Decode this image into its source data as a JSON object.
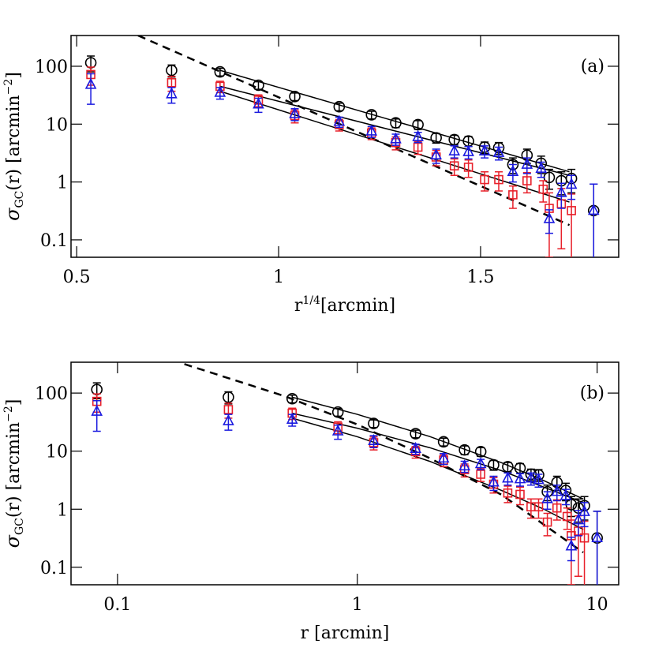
{
  "chart_data": [
    {
      "type": "scatter",
      "panel_label": "(a)",
      "xlabel": [
        "r",
        "1/4",
        "[arcmin]"
      ],
      "ylabel": [
        "σ",
        "GC",
        "(r)  [arcmin",
        "−2",
        "]"
      ],
      "xlog": false,
      "ylog": true,
      "xlim": [
        0.486,
        1.842
      ],
      "ylim": [
        340,
        0.05
      ],
      "xticks": [
        0.5,
        1,
        1.5
      ],
      "yticks": [
        0.1,
        1,
        10,
        100
      ],
      "series": [
        {
          "marker": "circle",
          "color": "#000000",
          "x": [
            0.535,
            0.735,
            0.855,
            0.95,
            1.04,
            1.15,
            1.23,
            1.29,
            1.345,
            1.39,
            1.435,
            1.47,
            1.51,
            1.545,
            1.58,
            1.615,
            1.65,
            1.67,
            1.7,
            1.725,
            1.78
          ],
          "values": [
            115,
            85,
            80,
            47,
            30,
            20,
            14.5,
            10.5,
            9.8,
            5.8,
            5.4,
            5.1,
            4.0,
            3.9,
            2.0,
            2.9,
            2.1,
            1.2,
            1.05,
            1.15,
            0.32
          ],
          "errors": [
            35,
            20,
            12,
            7,
            4.5,
            3,
            2.2,
            1.8,
            1.7,
            1.1,
            1.0,
            1.0,
            0.9,
            0.9,
            0.6,
            0.8,
            0.7,
            0.45,
            0.45,
            0.5,
            0.6
          ]
        },
        {
          "marker": "square",
          "color": "#e8202a",
          "x": [
            0.535,
            0.735,
            0.855,
            0.95,
            1.04,
            1.15,
            1.23,
            1.29,
            1.345,
            1.39,
            1.435,
            1.47,
            1.51,
            1.545,
            1.58,
            1.615,
            1.655,
            1.67,
            1.7,
            1.725
          ],
          "values": [
            72,
            52,
            45,
            26,
            14,
            9.8,
            7.0,
            4.8,
            4.0,
            2.7,
            1.9,
            1.8,
            1.1,
            1.1,
            0.6,
            1.05,
            0.75,
            0.35,
            0.42,
            0.32
          ],
          "errors": [
            25,
            15,
            10,
            6,
            3.5,
            2.2,
            1.6,
            1.2,
            1.0,
            0.8,
            0.6,
            0.6,
            0.4,
            0.4,
            0.25,
            0.4,
            0.3,
            0.3,
            0.35,
            0.3
          ]
        },
        {
          "marker": "triangle",
          "color": "#1a1adf",
          "x": [
            0.535,
            0.735,
            0.855,
            0.95,
            1.04,
            1.15,
            1.23,
            1.29,
            1.345,
            1.39,
            1.435,
            1.47,
            1.51,
            1.545,
            1.58,
            1.615,
            1.65,
            1.67,
            1.7,
            1.725,
            1.78
          ],
          "values": [
            48,
            33,
            35,
            22,
            15,
            11,
            7.5,
            5.5,
            6.0,
            2.9,
            3.4,
            3.3,
            3.4,
            3.2,
            1.5,
            2.0,
            1.7,
            0.23,
            0.65,
            0.9,
            0.32
          ],
          "errors": [
            26,
            10,
            8,
            6,
            3.5,
            2.2,
            1.6,
            1.2,
            1.2,
            0.8,
            0.8,
            0.8,
            0.8,
            0.8,
            0.5,
            0.6,
            0.5,
            0.1,
            0.3,
            0.4,
            0.6
          ]
        }
      ],
      "fits": [
        {
          "style": "solid",
          "x": [
            0.855,
            1.72
          ],
          "values": [
            85,
            1.5
          ]
        },
        {
          "style": "solid",
          "x": [
            0.855,
            1.72
          ],
          "values": [
            45,
            1.3
          ]
        },
        {
          "style": "solid",
          "x": [
            0.855,
            1.72
          ],
          "values": [
            37,
            0.45
          ]
        },
        {
          "style": "dashed",
          "x": [
            0.652,
            1.72
          ],
          "values": [
            340,
            0.18
          ]
        }
      ]
    },
    {
      "type": "scatter",
      "panel_label": "(b)",
      "xlabel": [
        "r  [arcmin]"
      ],
      "ylabel": [
        "σ",
        "GC",
        "(r)  [arcmin",
        "−2",
        "]"
      ],
      "xlog": true,
      "ylog": true,
      "xlim": [
        0.064,
        12.3
      ],
      "ylim": [
        340,
        0.05
      ],
      "xticks": [
        0.1,
        1,
        10
      ],
      "yticks": [
        0.1,
        1,
        10,
        100
      ],
      "series": [
        {
          "marker": "circle",
          "color": "#000000",
          "x": [
            0.082,
            0.29,
            0.535,
            0.83,
            1.17,
            1.75,
            2.29,
            2.8,
            3.27,
            3.7,
            4.24,
            4.77,
            5.3,
            5.7,
            6.2,
            6.8,
            7.4,
            7.8,
            8.35,
            8.85,
            10.0
          ],
          "values": [
            115,
            85,
            80,
            47,
            30,
            20,
            14.5,
            10.5,
            9.8,
            5.8,
            5.4,
            5.1,
            4.0,
            3.9,
            2.0,
            2.9,
            2.1,
            1.2,
            1.05,
            1.15,
            0.32
          ],
          "errors": [
            35,
            20,
            12,
            7,
            4.5,
            3,
            2.2,
            1.8,
            1.7,
            1.1,
            1.0,
            1.0,
            0.9,
            0.9,
            0.6,
            0.8,
            0.7,
            0.45,
            0.45,
            0.5,
            0.6
          ]
        },
        {
          "marker": "square",
          "color": "#e8202a",
          "x": [
            0.082,
            0.29,
            0.535,
            0.83,
            1.17,
            1.75,
            2.29,
            2.8,
            3.27,
            3.7,
            4.24,
            4.77,
            5.3,
            5.7,
            6.2,
            6.8,
            7.5,
            7.8,
            8.35,
            8.85
          ],
          "values": [
            72,
            52,
            45,
            26,
            14,
            9.8,
            7.0,
            4.8,
            4.0,
            2.7,
            1.9,
            1.8,
            1.1,
            1.1,
            0.6,
            1.05,
            0.75,
            0.35,
            0.42,
            0.32
          ],
          "errors": [
            25,
            15,
            10,
            6,
            3.5,
            2.2,
            1.6,
            1.2,
            1.0,
            0.8,
            0.6,
            0.6,
            0.4,
            0.4,
            0.25,
            0.4,
            0.3,
            0.3,
            0.35,
            0.3
          ]
        },
        {
          "marker": "triangle",
          "color": "#1a1adf",
          "x": [
            0.082,
            0.29,
            0.535,
            0.83,
            1.17,
            1.75,
            2.29,
            2.8,
            3.27,
            3.7,
            4.24,
            4.77,
            5.3,
            5.7,
            6.2,
            6.8,
            7.4,
            7.8,
            8.35,
            8.85,
            10.0
          ],
          "values": [
            48,
            33,
            35,
            22,
            15,
            11,
            7.5,
            5.5,
            6.0,
            2.9,
            3.4,
            3.3,
            3.4,
            3.2,
            1.5,
            2.0,
            1.7,
            0.23,
            0.65,
            0.9,
            0.32
          ],
          "errors": [
            26,
            10,
            8,
            6,
            3.5,
            2.2,
            1.6,
            1.2,
            1.2,
            0.8,
            0.8,
            0.8,
            0.8,
            0.8,
            0.5,
            0.6,
            0.5,
            0.1,
            0.3,
            0.4,
            0.6
          ]
        }
      ],
      "fits": [
        {
          "style": "solid",
          "x": [
            0.535,
            1,
            2,
            4,
            6,
            8.75
          ],
          "values": [
            85,
            43,
            17.9,
            6.3,
            3.1,
            1.5
          ]
        },
        {
          "style": "solid",
          "x": [
            0.535,
            1,
            2,
            4,
            6,
            8.75
          ],
          "values": [
            45,
            24.8,
            11.5,
            4.6,
            2.4,
            1.3
          ]
        },
        {
          "style": "solid",
          "x": [
            0.535,
            1,
            2,
            4,
            6,
            8.75
          ],
          "values": [
            37,
            17.7,
            6.7,
            2.1,
            1.0,
            0.45
          ]
        },
        {
          "style": "dashed",
          "x": [
            0.19,
            0.5,
            1,
            2,
            4,
            8.75
          ],
          "values": [
            316,
            88,
            28.8,
            7.6,
            1.77,
            0.18
          ]
        }
      ]
    }
  ]
}
